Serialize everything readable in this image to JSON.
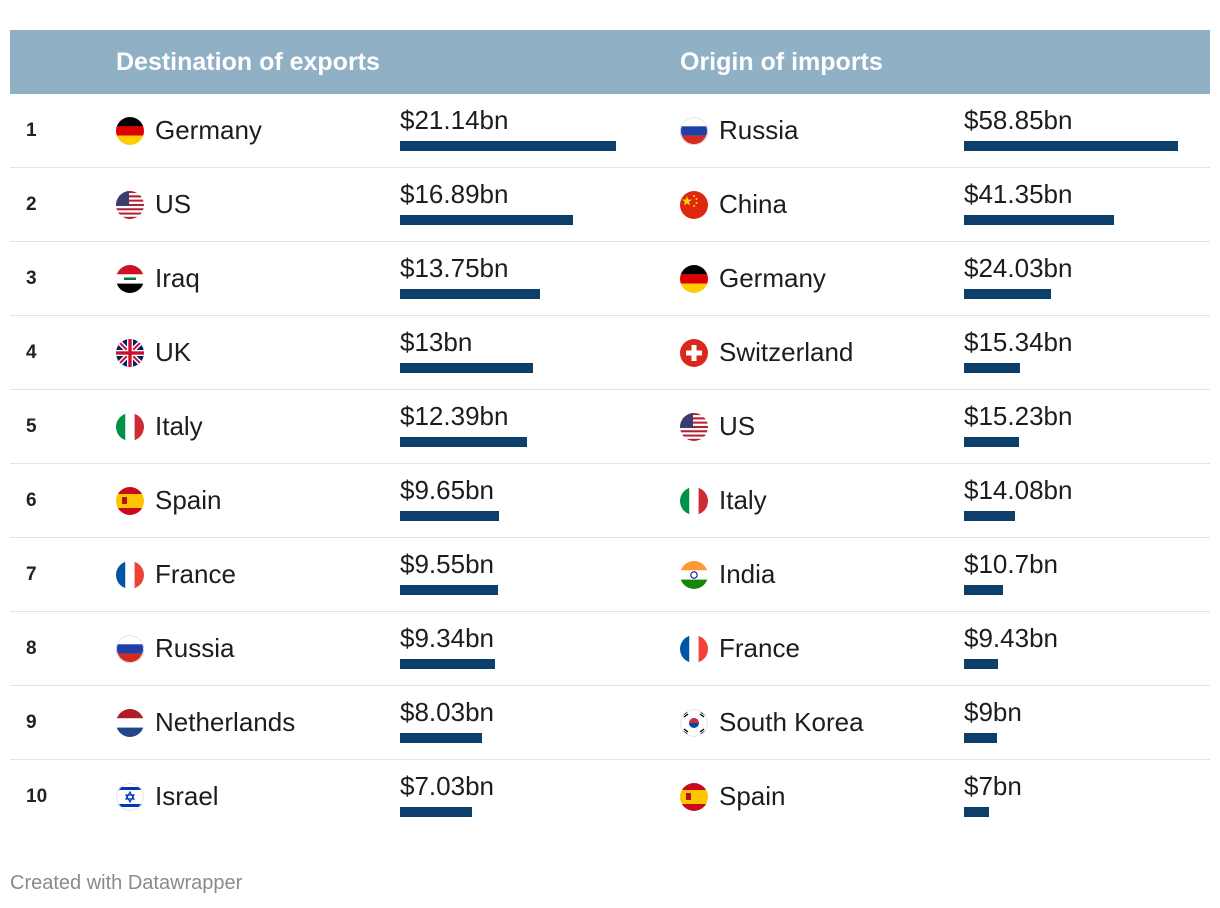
{
  "header": {
    "exports_title": "Destination of exports",
    "imports_title": "Origin of imports"
  },
  "footer": {
    "credit": "Created with Datawrapper"
  },
  "colors": {
    "header_bg": "#8fb0c5",
    "bar": "#0d3f6b",
    "row_divider": "#e3e3e3"
  },
  "chart_data": {
    "type": "table",
    "columns": [
      "",
      "Destination of exports",
      "",
      "Origin of imports",
      ""
    ],
    "rows": [
      {
        "rank": "1",
        "export_country": "Germany",
        "export_flag": "germany",
        "export_label": "$21.14bn",
        "export_value": 21.14,
        "import_country": "Russia",
        "import_flag": "russia",
        "import_label": "$58.85bn",
        "import_value": 58.85
      },
      {
        "rank": "2",
        "export_country": "US",
        "export_flag": "us",
        "export_label": "$16.89bn",
        "export_value": 16.89,
        "import_country": "China",
        "import_flag": "china",
        "import_label": "$41.35bn",
        "import_value": 41.35
      },
      {
        "rank": "3",
        "export_country": "Iraq",
        "export_flag": "iraq",
        "export_label": "$13.75bn",
        "export_value": 13.75,
        "import_country": "Germany",
        "import_flag": "germany",
        "import_label": "$24.03bn",
        "import_value": 24.03
      },
      {
        "rank": "4",
        "export_country": "UK",
        "export_flag": "uk",
        "export_label": "$13bn",
        "export_value": 13,
        "import_country": "Switzerland",
        "import_flag": "switzerland",
        "import_label": "$15.34bn",
        "import_value": 15.34
      },
      {
        "rank": "5",
        "export_country": "Italy",
        "export_flag": "italy",
        "export_label": "$12.39bn",
        "export_value": 12.39,
        "import_country": "US",
        "import_flag": "us",
        "import_label": "$15.23bn",
        "import_value": 15.23
      },
      {
        "rank": "6",
        "export_country": "Spain",
        "export_flag": "spain",
        "export_label": "$9.65bn",
        "export_value": 9.65,
        "import_country": "Italy",
        "import_flag": "italy",
        "import_label": "$14.08bn",
        "import_value": 14.08
      },
      {
        "rank": "7",
        "export_country": "France",
        "export_flag": "france",
        "export_label": "$9.55bn",
        "export_value": 9.55,
        "import_country": "India",
        "import_flag": "india",
        "import_label": "$10.7bn",
        "import_value": 10.7
      },
      {
        "rank": "8",
        "export_country": "Russia",
        "export_flag": "russia",
        "export_label": "$9.34bn",
        "export_value": 9.34,
        "import_country": "France",
        "import_flag": "france",
        "import_label": "$9.43bn",
        "import_value": 9.43
      },
      {
        "rank": "9",
        "export_country": "Netherlands",
        "export_flag": "netherlands",
        "export_label": "$8.03bn",
        "export_value": 8.03,
        "import_country": "South Korea",
        "import_flag": "south-korea",
        "import_label": "$9bn",
        "import_value": 9
      },
      {
        "rank": "10",
        "export_country": "Israel",
        "export_flag": "israel",
        "export_label": "$7.03bn",
        "export_value": 7.03,
        "import_country": "Spain",
        "import_flag": "spain",
        "import_label": "$7bn",
        "import_value": 7
      }
    ]
  }
}
